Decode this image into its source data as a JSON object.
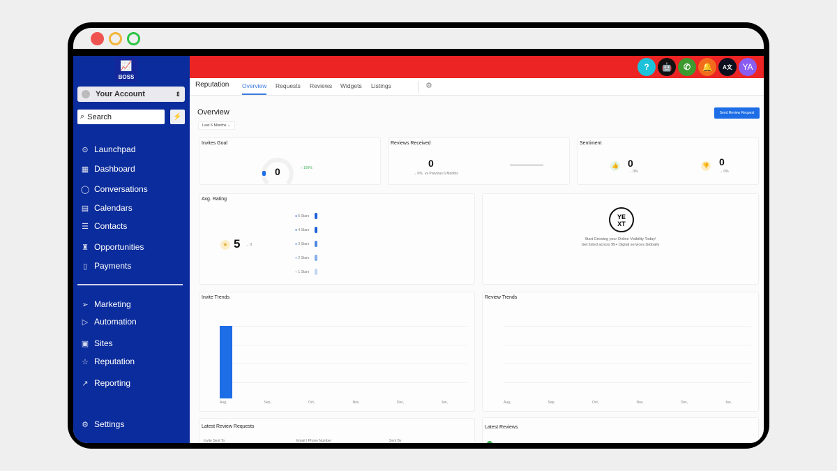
{
  "sidebar": {
    "logo_text": "BOSS",
    "account": "Your Account",
    "search_placeholder": "Search",
    "items": [
      {
        "label": "Launchpad",
        "icon": "rocket-icon"
      },
      {
        "label": "Dashboard",
        "icon": "grid-icon"
      },
      {
        "label": "Conversations",
        "icon": "chat-icon"
      },
      {
        "label": "Calendars",
        "icon": "calendar-icon"
      },
      {
        "label": "Contacts",
        "icon": "contacts-icon"
      },
      {
        "label": "Opportunities",
        "icon": "trophy-icon"
      },
      {
        "label": "Payments",
        "icon": "receipt-icon"
      },
      {
        "label": "Marketing",
        "icon": "send-icon"
      },
      {
        "label": "Automation",
        "icon": "play-icon"
      },
      {
        "label": "Sites",
        "icon": "browser-icon"
      },
      {
        "label": "Reputation",
        "icon": "star-icon"
      },
      {
        "label": "Reporting",
        "icon": "trend-icon"
      },
      {
        "label": "Settings",
        "icon": "gear-icon"
      }
    ]
  },
  "header": {
    "icons": [
      {
        "name": "help-icon",
        "text": "?",
        "color": "#1cc2d9"
      },
      {
        "name": "bot-icon",
        "text": "🤖",
        "color": "#111111"
      },
      {
        "name": "phone-icon",
        "text": "✆",
        "color": "#3c9a2e"
      },
      {
        "name": "bell-icon",
        "text": "🔔",
        "color": "#f26b1d"
      },
      {
        "name": "translate-icon",
        "text": "A文",
        "color": "#0b0f1e"
      }
    ],
    "avatar": "YA",
    "avatar_color": "#8a5cf0",
    "accent": "#ec2424"
  },
  "tabs": {
    "section": "Reputation",
    "items": [
      "Overview",
      "Requests",
      "Reviews",
      "Widgets",
      "Listings"
    ],
    "active": "Overview"
  },
  "overview": {
    "title": "Overview",
    "period": "Last 6 Months",
    "send_button": "Send Review Request"
  },
  "invites_goal": {
    "title": "Invites Goal",
    "value": "0",
    "change": "↑ 100%"
  },
  "reviews_received": {
    "title": "Reviews Received",
    "value": "0",
    "change": "→ 0%",
    "compare": "vs Previous 6 Months"
  },
  "sentiment": {
    "title": "Sentiment",
    "positive": "0",
    "positive_change": "→ 0%",
    "negative": "0",
    "negative_change": "→ 0%"
  },
  "avg_rating": {
    "title": "Avg. Rating",
    "value": "5",
    "change": "→ 0",
    "stars": [
      "5 Stars",
      "4 Stars",
      "3 Stars",
      "2 Stars",
      "1 Stars"
    ]
  },
  "yext": {
    "logo": "YE XT",
    "line1": "Start Growing your Online Visibility Today!",
    "line2": "Get listed across 95+ Digital services Globally"
  },
  "invite_trends": {
    "title": "Invite Trends",
    "months": [
      "Aug,",
      "Sep,",
      "Oct,",
      "Nov,",
      "Dec,",
      "Jan,"
    ]
  },
  "review_trends": {
    "title": "Review Trends",
    "months": [
      "Aug,",
      "Sep,",
      "Oct,",
      "Nov,",
      "Dec,",
      "Jan,"
    ]
  },
  "latest_requests": {
    "title": "Latest Review Requests",
    "columns": [
      "Invite Sent To",
      "Email | Phone Number",
      "Sent By"
    ]
  },
  "latest_reviews": {
    "title": "Latest Reviews"
  }
}
